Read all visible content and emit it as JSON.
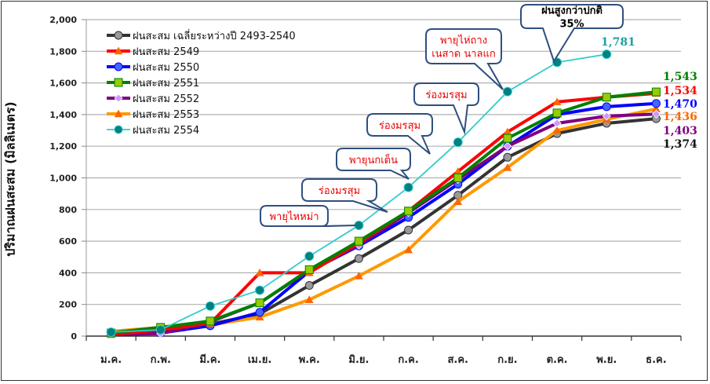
{
  "chart_data": {
    "type": "line",
    "title": "",
    "xlabel": "",
    "ylabel": "ปริมาณฝนสะสม (มิลลิเมตร)",
    "ylim": [
      0,
      2000
    ],
    "ytick_step": 200,
    "yticks": [
      "0",
      "200",
      "400",
      "600",
      "800",
      "1,000",
      "1,200",
      "1,400",
      "1,600",
      "1,800",
      "2,000"
    ],
    "grid": true,
    "legend_position": "top-left",
    "categories": [
      "ม.ค.",
      "ก.พ.",
      "มี.ค.",
      "เม.ย.",
      "พ.ค.",
      "มิ.ย.",
      "ก.ค.",
      "ส.ค.",
      "ก.ย.",
      "ต.ค.",
      "พ.ย.",
      "ธ.ค."
    ],
    "series": [
      {
        "name": "ฝนสะสม เฉลี่ยระหว่างปี 2493-2540",
        "color": "#333333",
        "marker": "circle",
        "marker_fill": "#999999",
        "values": [
          15,
          35,
          75,
          140,
          320,
          490,
          670,
          890,
          1130,
          1280,
          1345,
          1374
        ],
        "end_label": "1,374",
        "end_label_color": "#111111"
      },
      {
        "name": "ฝนสะสม 2549",
        "color": "#ff0000",
        "marker": "triangle",
        "marker_fill": "#ff6600",
        "values": [
          10,
          40,
          80,
          400,
          400,
          590,
          790,
          1040,
          1290,
          1480,
          1510,
          1534
        ],
        "end_label": "1,534",
        "end_label_color": "#ff0000"
      },
      {
        "name": "ฝนสะสม 2550",
        "color": "#0000ff",
        "marker": "circle",
        "marker_fill": "#4466ff",
        "values": [
          15,
          20,
          65,
          150,
          410,
          570,
          750,
          960,
          1200,
          1400,
          1450,
          1470
        ],
        "end_label": "1,470",
        "end_label_color": "#0000ff"
      },
      {
        "name": "ฝนสะสม 2551",
        "color": "#008000",
        "marker": "square",
        "marker_fill": "#99cc00",
        "values": [
          20,
          55,
          95,
          210,
          420,
          600,
          790,
          1000,
          1250,
          1410,
          1510,
          1543
        ],
        "end_label": "1,543",
        "end_label_color": "#008000"
      },
      {
        "name": "ฝนสะสม 2552",
        "color": "#7f007f",
        "marker": "diamond",
        "marker_fill": "#cc99ff",
        "values": [
          10,
          15,
          90,
          210,
          415,
          575,
          780,
          990,
          1200,
          1345,
          1390,
          1403
        ],
        "end_label": "1,403",
        "end_label_color": "#7f007f"
      },
      {
        "name": "ฝนสะสม 2553",
        "color": "#ff9900",
        "marker": "triangle",
        "marker_fill": "#ff6600",
        "values": [
          30,
          55,
          70,
          120,
          230,
          380,
          545,
          850,
          1065,
          1300,
          1370,
          1436
        ],
        "end_label": "1,436",
        "end_label_color": "#ff6600"
      },
      {
        "name": "ฝนสะสม 2554",
        "color": "#33cccc",
        "marker": "circle",
        "marker_fill": "#008080",
        "values": [
          25,
          40,
          190,
          290,
          505,
          700,
          940,
          1225,
          1545,
          1730,
          1781,
          null
        ],
        "end_label": "1,781",
        "end_label_color": "#20a0a0"
      }
    ],
    "annotations": [
      {
        "text": "พายุไหหม่า",
        "target_series": "ฝนสะสม 2554",
        "target_category": "มิ.ย.",
        "color": "#e00000"
      },
      {
        "text": "ร่องมรสุม",
        "target_series": "ฝนสะสม 2554",
        "target_category": "ก.ค.",
        "color": "#e00000"
      },
      {
        "text": "พายุนกเต็น",
        "target_series": "ฝนสะสม 2554",
        "target_category": "ก.ค.",
        "color": "#e00000"
      },
      {
        "text": "ร่องมรสุม",
        "target_series": "ฝนสะสม 2554",
        "target_category": "ส.ค.",
        "color": "#e00000"
      },
      {
        "text": "ร่องมรสุม",
        "target_series": "ฝนสะสม 2554",
        "target_category": "ส.ค.",
        "color": "#e00000"
      },
      {
        "text": "พายุไห่ถาง\nเนสาด นาลแก",
        "target_series": "ฝนสะสม 2554",
        "target_category": "ก.ย.",
        "color": "#e00000"
      },
      {
        "text": "ฝนสูงกว่าปกติ\n35%",
        "target_series": "ฝนสะสม 2554",
        "target_category": "ต.ค.",
        "color": "#000000"
      }
    ]
  }
}
